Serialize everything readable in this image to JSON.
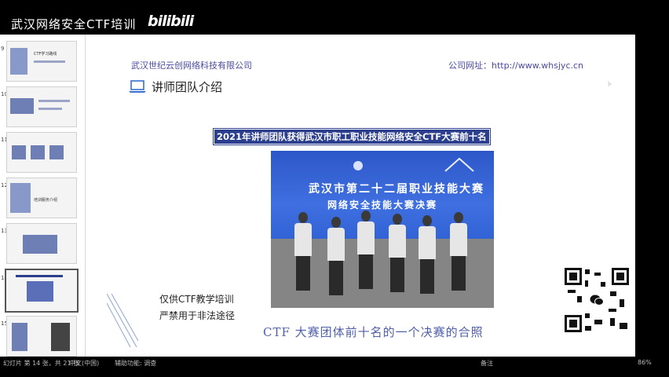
{
  "banner": {
    "title": "武汉网络安全CTF培训",
    "logo": "bilibili"
  },
  "thumbnails": [
    {
      "num": "9",
      "text": "CTF学习路线"
    },
    {
      "num": "10",
      "text": ""
    },
    {
      "num": "11",
      "text": ""
    },
    {
      "num": "12",
      "text": "培训服务介绍"
    },
    {
      "num": "13",
      "text": ""
    },
    {
      "num": "14",
      "text": ""
    },
    {
      "num": "15",
      "text": ""
    }
  ],
  "slide": {
    "company": "武汉世纪云创网络科技有限公司",
    "website": "公司网址：http://www.whsjyc.cn",
    "section_title": "讲师团队介绍",
    "headline": "2021年讲师团队获得武汉市职工职业技能网络安全CTF大赛前十名",
    "photo_line1": "武汉市第二十二届职业技能大赛",
    "photo_line2": "网络安全技能大赛决赛",
    "note_line1": "仅供CTF教学培训",
    "note_line2": "严禁用于非法途径",
    "photo_caption": "CTF 大赛团体前十名的一个决赛的合照"
  },
  "status_bar": {
    "slide_counter": "幻灯片 第 14 张，共 21 张",
    "language": "中文(中国)",
    "accessibility": "辅助功能: 调查",
    "notes": "备注",
    "zoom": "86%"
  },
  "icons": {
    "laptop": "laptop-icon",
    "wechat": "wechat-icon",
    "cursor": "cursor-icon"
  },
  "colors": {
    "headline_bg": "#2c3f8e",
    "photo_banner": "#3f6fe0",
    "company_text": "#4a4aa0"
  }
}
